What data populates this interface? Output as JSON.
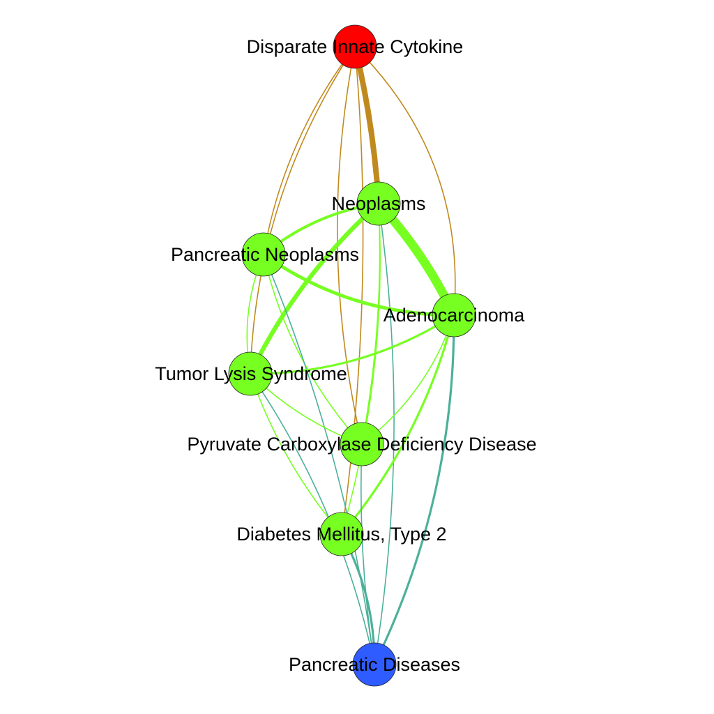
{
  "colors": {
    "source": "#ff0000",
    "intermediate": "#77ff22",
    "target": "#2f5cff",
    "edge_source": "#c08a1e",
    "edge_intermediate": "#77ff22",
    "edge_target": "#4cb09a"
  },
  "nodes": [
    {
      "id": "cytokine",
      "label": "Disparate Innate Cytokine",
      "role": "source"
    },
    {
      "id": "neoplasms",
      "label": "Neoplasms",
      "role": "intermediate"
    },
    {
      "id": "pancreatic_neoplasms",
      "label": "Pancreatic Neoplasms",
      "role": "intermediate"
    },
    {
      "id": "adenocarcinoma",
      "label": "Adenocarcinoma",
      "role": "intermediate"
    },
    {
      "id": "tumor_lysis",
      "label": "Tumor Lysis Syndrome",
      "role": "intermediate"
    },
    {
      "id": "pyruvate",
      "label": "Pyruvate Carboxylase Deficiency Disease",
      "role": "intermediate"
    },
    {
      "id": "diabetes",
      "label": "Diabetes Mellitus, Type 2",
      "role": "intermediate"
    },
    {
      "id": "pancreatic_diseases",
      "label": "Pancreatic Diseases",
      "role": "target"
    }
  ],
  "edges": [
    {
      "from": "cytokine",
      "to": "neoplasms",
      "weight": 5
    },
    {
      "from": "cytokine",
      "to": "pancreatic_neoplasms",
      "weight": 1
    },
    {
      "from": "cytokine",
      "to": "tumor_lysis",
      "weight": 1
    },
    {
      "from": "cytokine",
      "to": "adenocarcinoma",
      "weight": 1
    },
    {
      "from": "cytokine",
      "to": "pyruvate",
      "weight": 1
    },
    {
      "from": "cytokine",
      "to": "diabetes",
      "weight": 1
    },
    {
      "from": "neoplasms",
      "to": "adenocarcinoma",
      "weight": 8
    },
    {
      "from": "neoplasms",
      "to": "tumor_lysis",
      "weight": 4
    },
    {
      "from": "neoplasms",
      "to": "pancreatic_neoplasms",
      "weight": 2.5
    },
    {
      "from": "neoplasms",
      "to": "pyruvate",
      "weight": 1
    },
    {
      "from": "neoplasms",
      "to": "diabetes",
      "weight": 1
    },
    {
      "from": "neoplasms",
      "to": "pancreatic_diseases",
      "weight": 1
    },
    {
      "from": "pancreatic_neoplasms",
      "to": "adenocarcinoma",
      "weight": 3
    },
    {
      "from": "pancreatic_neoplasms",
      "to": "tumor_lysis",
      "weight": 1
    },
    {
      "from": "pancreatic_neoplasms",
      "to": "pyruvate",
      "weight": 1
    },
    {
      "from": "pancreatic_neoplasms",
      "to": "pancreatic_diseases",
      "weight": 1
    },
    {
      "from": "adenocarcinoma",
      "to": "tumor_lysis",
      "weight": 2
    },
    {
      "from": "adenocarcinoma",
      "to": "pyruvate",
      "weight": 1
    },
    {
      "from": "adenocarcinoma",
      "to": "diabetes",
      "weight": 2
    },
    {
      "from": "adenocarcinoma",
      "to": "pancreatic_diseases",
      "weight": 2
    },
    {
      "from": "tumor_lysis",
      "to": "pyruvate",
      "weight": 1
    },
    {
      "from": "tumor_lysis",
      "to": "diabetes",
      "weight": 1
    },
    {
      "from": "tumor_lysis",
      "to": "pancreatic_diseases",
      "weight": 1
    },
    {
      "from": "pyruvate",
      "to": "pancreatic_diseases",
      "weight": 1
    },
    {
      "from": "diabetes",
      "to": "pancreatic_diseases",
      "weight": 2
    }
  ]
}
